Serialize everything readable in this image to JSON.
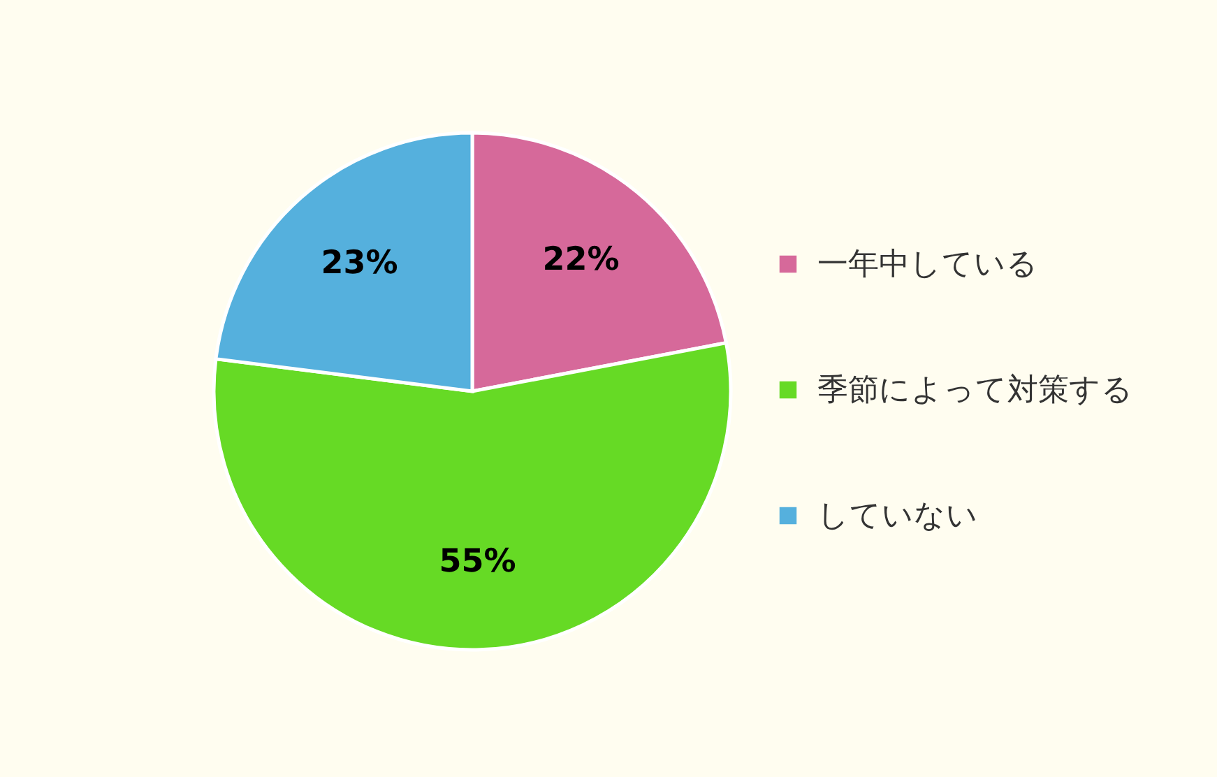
{
  "chart_data": {
    "type": "pie",
    "categories": [
      "一年中している",
      "季節によって対策する",
      "していない"
    ],
    "values": [
      22,
      55,
      23
    ],
    "colors": [
      "#d6699a",
      "#66da25",
      "#55b0dd"
    ],
    "value_labels": [
      "22%",
      "55%",
      "23%"
    ],
    "legend": "right"
  }
}
